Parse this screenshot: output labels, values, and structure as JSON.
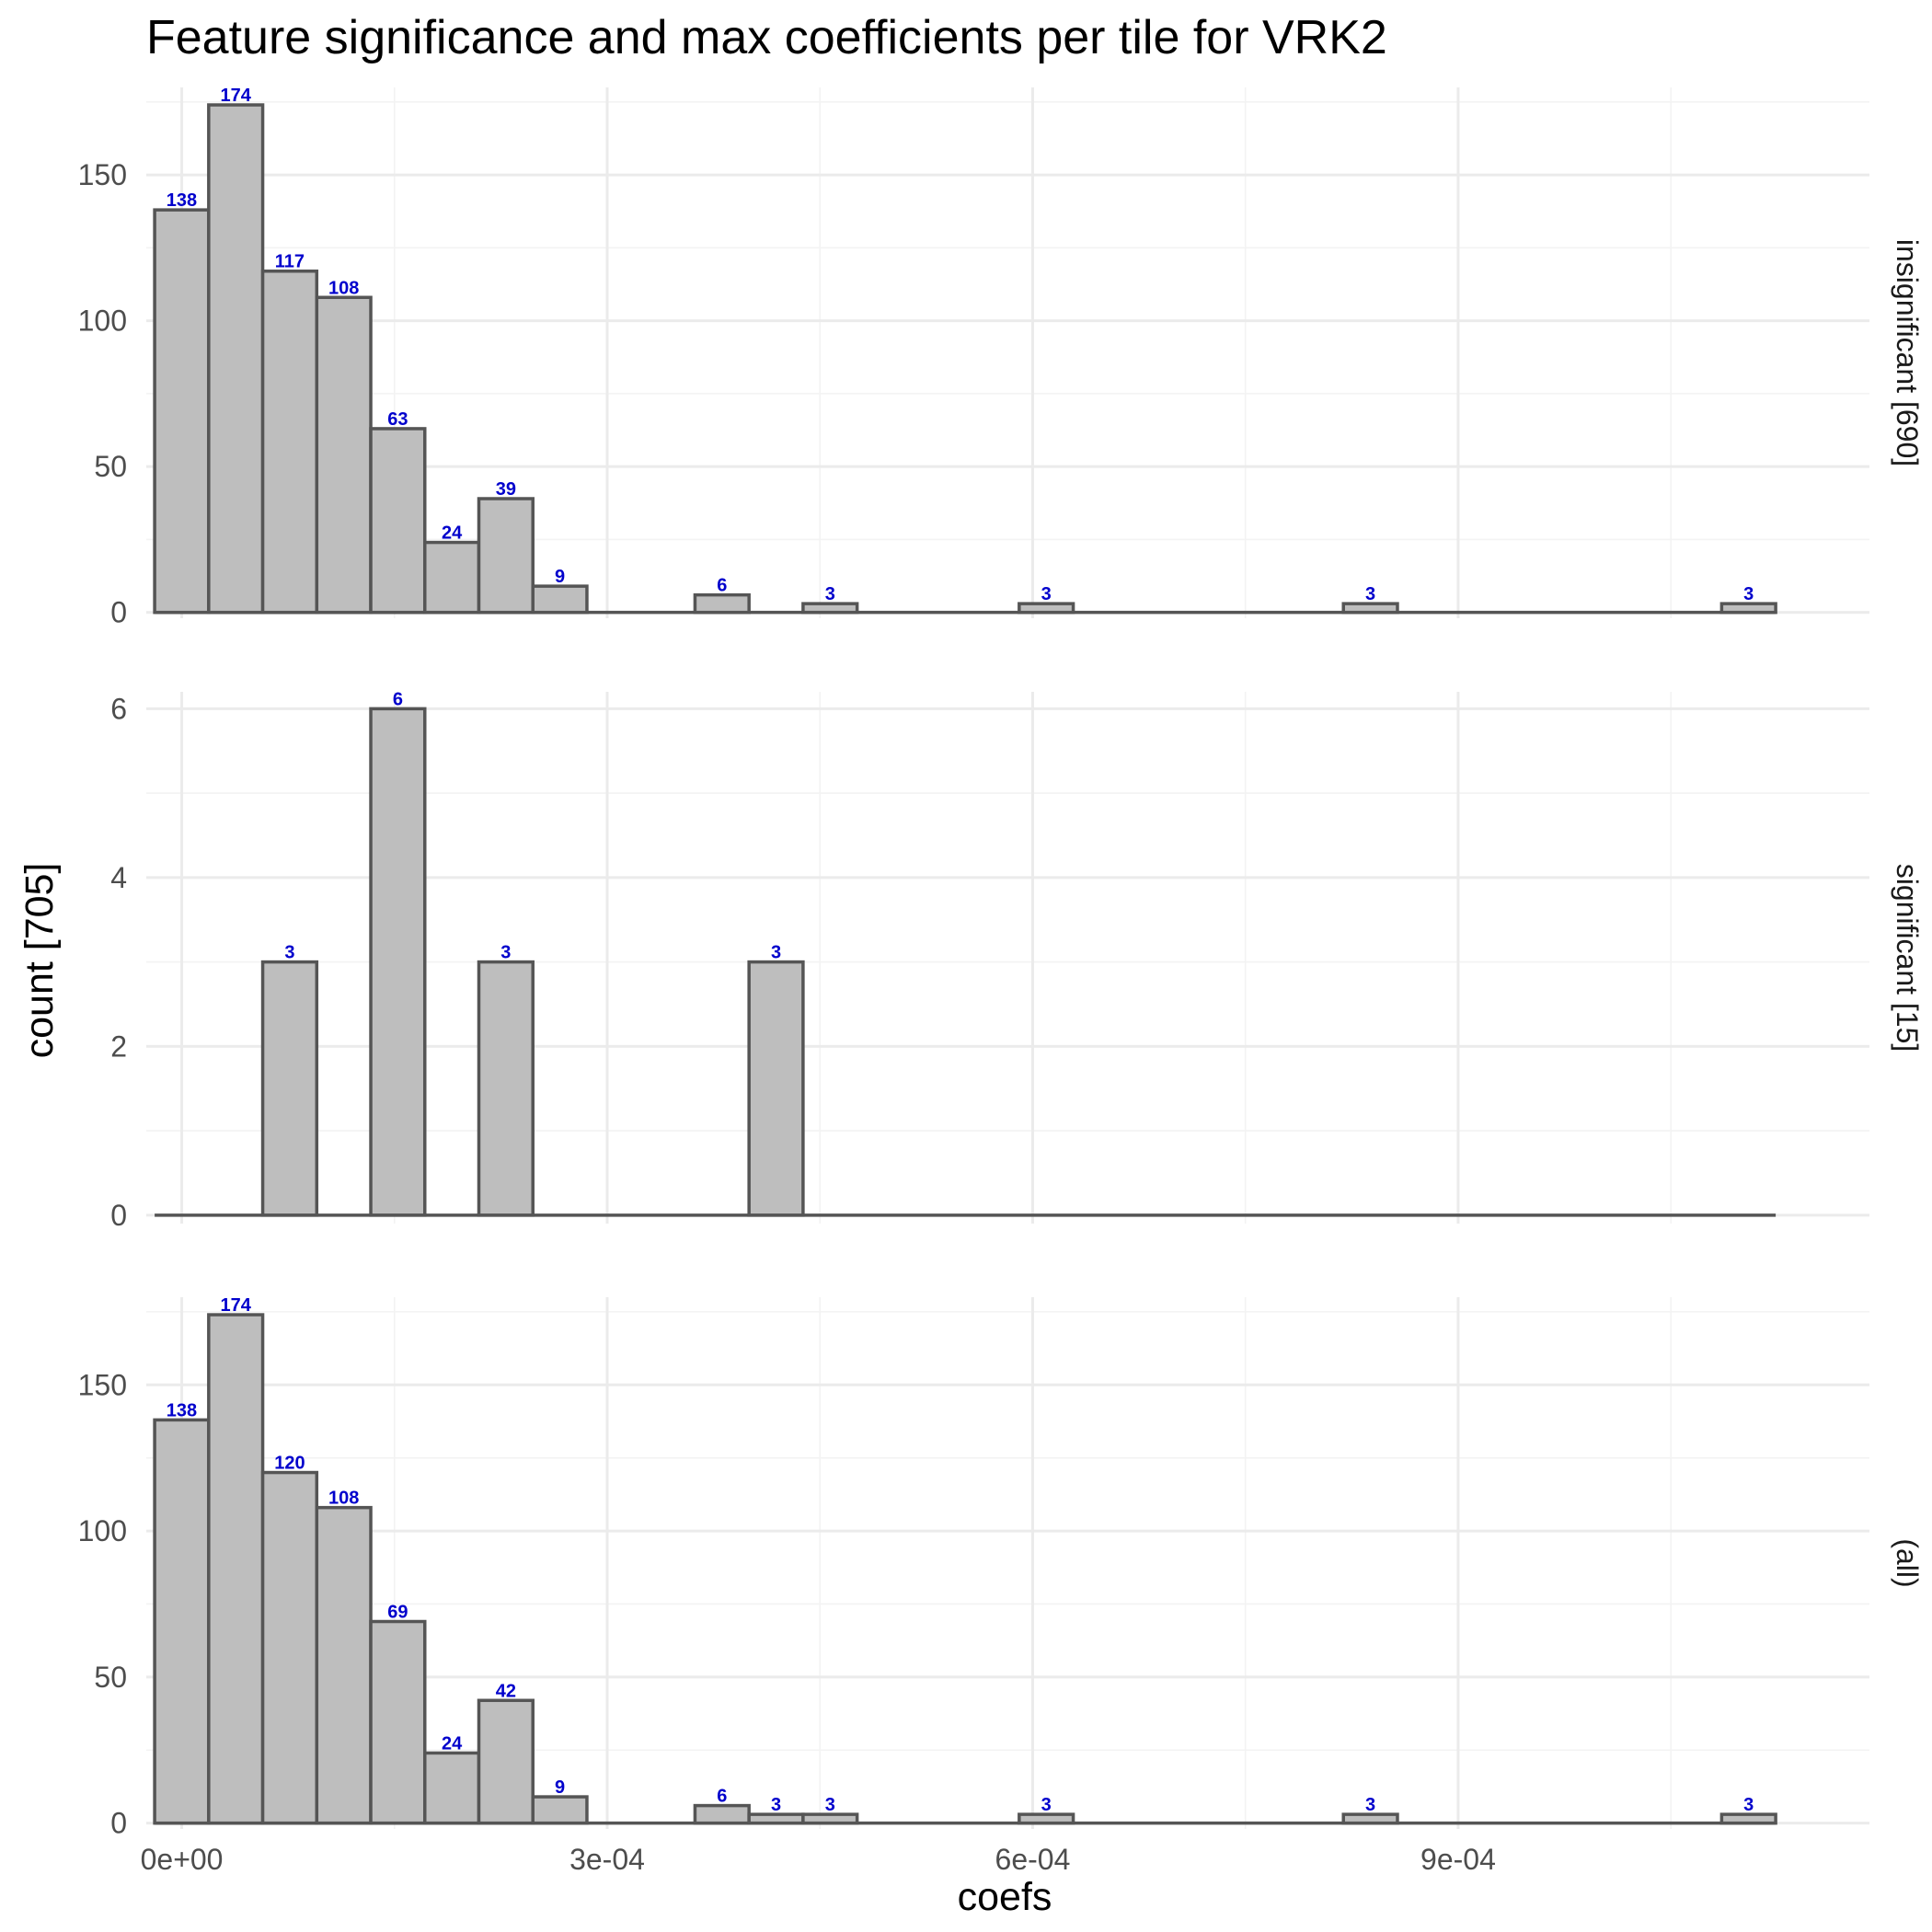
{
  "chart_data": {
    "type": "bar",
    "title": "Feature significance and max coefficients per tile for VRK2",
    "xlabel": "coefs",
    "ylabel": "count [705]",
    "bar_fill": "#bebebe",
    "bar_stroke": "#555555",
    "label_color": "#0000cc",
    "bin_width": 3.81e-05,
    "x_start": -1.91e-05,
    "xlim": [
      -2.5e-05,
      0.00119
    ],
    "x_ticks": [
      0,
      0.0003,
      0.0006,
      0.0009
    ],
    "x_tick_labels": [
      "0e+00",
      "3e-04",
      "6e-04",
      "9e-04"
    ],
    "panels": [
      {
        "strip": "insignificant [690]",
        "ylim": [
          -2,
          180
        ],
        "y_ticks": [
          0,
          50,
          100,
          150
        ],
        "y_tick_labels": [
          "0",
          "50",
          "100",
          "150"
        ],
        "counts": [
          138,
          174,
          117,
          108,
          63,
          24,
          39,
          9,
          0,
          0,
          6,
          0,
          3,
          0,
          0,
          0,
          3,
          0,
          0,
          0,
          0,
          0,
          3,
          0,
          0,
          0,
          0,
          0,
          0,
          3
        ]
      },
      {
        "strip": "significant [15]",
        "ylim": [
          -0.1,
          6.2
        ],
        "y_ticks": [
          0,
          2,
          4,
          6
        ],
        "y_tick_labels": [
          "0",
          "2",
          "4",
          "6"
        ],
        "counts": [
          0,
          0,
          3,
          0,
          6,
          0,
          3,
          0,
          0,
          0,
          0,
          3,
          0,
          0,
          0,
          0,
          0,
          0,
          0,
          0,
          0,
          0,
          0,
          0,
          0,
          0,
          0,
          0,
          0,
          0
        ]
      },
      {
        "strip": "(all)",
        "ylim": [
          -2,
          180
        ],
        "y_ticks": [
          0,
          50,
          100,
          150
        ],
        "y_tick_labels": [
          "0",
          "50",
          "100",
          "150"
        ],
        "counts": [
          138,
          174,
          120,
          108,
          69,
          24,
          42,
          9,
          0,
          0,
          6,
          3,
          3,
          0,
          0,
          0,
          3,
          0,
          0,
          0,
          0,
          0,
          3,
          0,
          0,
          0,
          0,
          0,
          0,
          3
        ]
      }
    ]
  }
}
